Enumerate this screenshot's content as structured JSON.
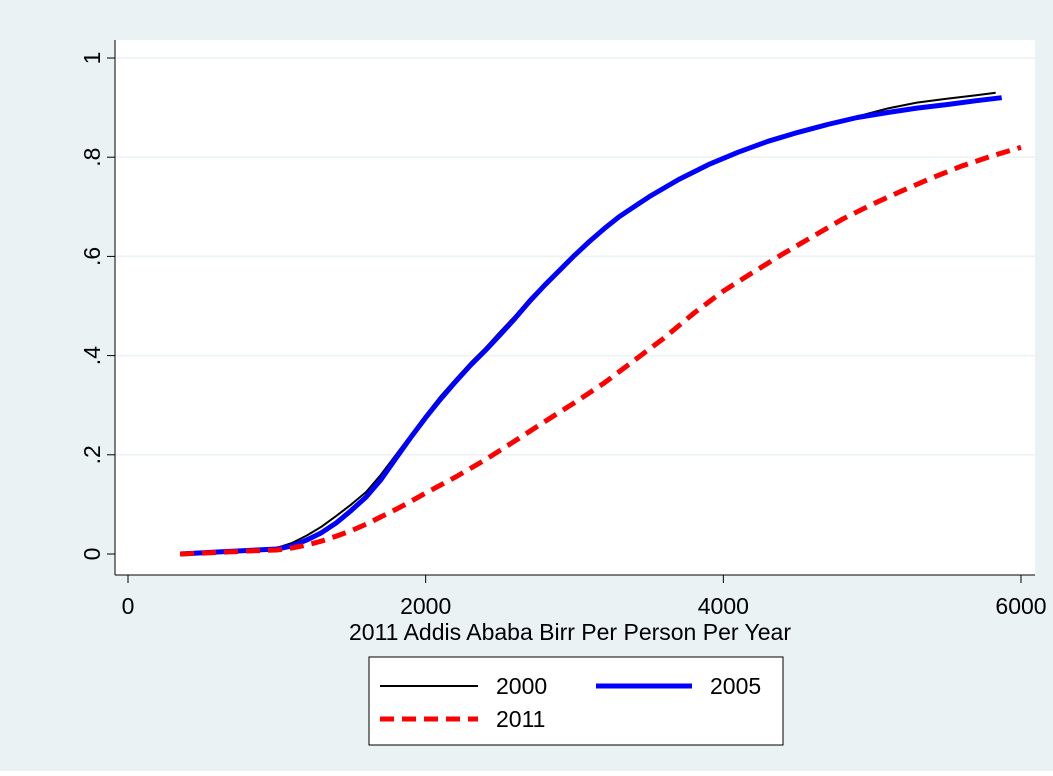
{
  "chart_data": {
    "type": "line",
    "title": "",
    "xlabel": "2011 Addis Ababa Birr Per Person Per Year",
    "ylabel": "",
    "xlim": [
      0,
      6000
    ],
    "ylim": [
      0,
      1
    ],
    "x_ticks": [
      0,
      2000,
      4000,
      6000
    ],
    "x_tick_labels": [
      "0",
      "2000",
      "4000",
      "6000"
    ],
    "y_ticks": [
      0,
      0.2,
      0.4,
      0.6,
      0.8,
      1
    ],
    "y_tick_labels": [
      "0",
      ".2",
      ".4",
      ".6",
      ".8",
      "1"
    ],
    "grid": true,
    "legend_position": "bottom",
    "series": [
      {
        "name": "2000",
        "color": "#000000",
        "style": "solid-thin",
        "x": [
          350,
          600,
          800,
          1000,
          1100,
          1200,
          1300,
          1400,
          1500,
          1600,
          1700,
          1800,
          1900,
          2000,
          2100,
          2200,
          2300,
          2400,
          2500,
          2600,
          2700,
          2800,
          2900,
          3000,
          3100,
          3200,
          3300,
          3400,
          3500,
          3700,
          3900,
          4100,
          4300,
          4500,
          4700,
          4900,
          5100,
          5300,
          5500,
          5700,
          5830
        ],
        "y": [
          0.0,
          0.004,
          0.007,
          0.012,
          0.022,
          0.037,
          0.055,
          0.077,
          0.1,
          0.125,
          0.16,
          0.2,
          0.24,
          0.28,
          0.318,
          0.352,
          0.385,
          0.415,
          0.448,
          0.48,
          0.515,
          0.545,
          0.575,
          0.605,
          0.632,
          0.658,
          0.682,
          0.702,
          0.72,
          0.755,
          0.785,
          0.81,
          0.832,
          0.85,
          0.868,
          0.882,
          0.898,
          0.91,
          0.918,
          0.925,
          0.93
        ]
      },
      {
        "name": "2005",
        "color": "#0000ff",
        "style": "solid-thick",
        "x": [
          350,
          600,
          800,
          1000,
          1100,
          1200,
          1300,
          1400,
          1500,
          1600,
          1700,
          1800,
          1900,
          2000,
          2100,
          2200,
          2300,
          2400,
          2500,
          2600,
          2700,
          2800,
          2900,
          3000,
          3100,
          3200,
          3300,
          3400,
          3500,
          3700,
          3900,
          4100,
          4300,
          4500,
          4700,
          4900,
          5100,
          5300,
          5500,
          5700,
          5870
        ],
        "y": [
          0.0,
          0.004,
          0.007,
          0.01,
          0.016,
          0.028,
          0.043,
          0.063,
          0.088,
          0.115,
          0.15,
          0.193,
          0.235,
          0.275,
          0.312,
          0.347,
          0.38,
          0.41,
          0.442,
          0.475,
          0.51,
          0.542,
          0.572,
          0.602,
          0.63,
          0.656,
          0.68,
          0.7,
          0.72,
          0.755,
          0.785,
          0.81,
          0.832,
          0.85,
          0.866,
          0.88,
          0.89,
          0.899,
          0.906,
          0.914,
          0.92
        ]
      },
      {
        "name": "2011",
        "color": "#ff0000",
        "style": "dashed-thick",
        "x": [
          350,
          600,
          800,
          1000,
          1100,
          1200,
          1300,
          1400,
          1500,
          1600,
          1700,
          1800,
          1900,
          2000,
          2200,
          2400,
          2600,
          2800,
          3000,
          3200,
          3400,
          3600,
          3800,
          4000,
          4200,
          4400,
          4600,
          4800,
          5000,
          5200,
          5400,
          5600,
          5800,
          6000
        ],
        "y": [
          0.0,
          0.003,
          0.006,
          0.008,
          0.012,
          0.018,
          0.026,
          0.036,
          0.047,
          0.06,
          0.075,
          0.09,
          0.106,
          0.123,
          0.155,
          0.19,
          0.228,
          0.267,
          0.305,
          0.345,
          0.39,
          0.435,
          0.485,
          0.53,
          0.568,
          0.605,
          0.64,
          0.675,
          0.705,
          0.732,
          0.758,
          0.782,
          0.802,
          0.82
        ]
      }
    ]
  }
}
